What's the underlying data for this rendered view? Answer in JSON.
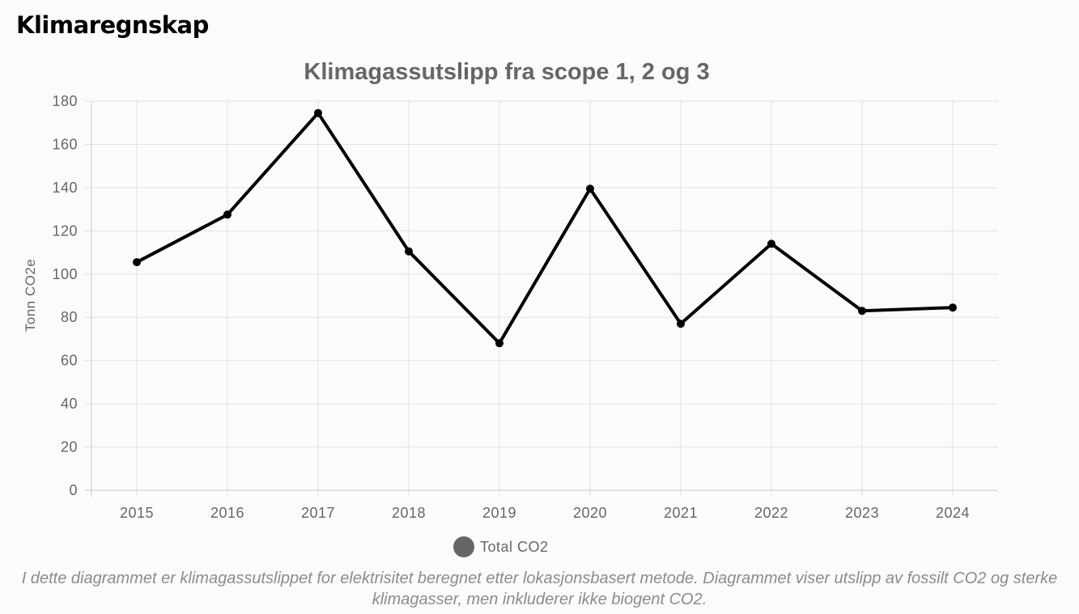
{
  "page": {
    "heading": "Klimaregnskap",
    "footnote": "I dette diagrammet er klimagassutslippet for elektrisitet beregnet etter lokasjonsbasert metode. Diagrammet viser utslipp av fossilt CO2 og sterke klimagasser, men inkluderer ikke biogent CO2."
  },
  "chart_data": {
    "type": "line",
    "title": "Klimagassutslipp fra scope 1, 2 og 3",
    "xlabel": "",
    "ylabel": "Tonn CO2e",
    "categories": [
      "2015",
      "2016",
      "2017",
      "2018",
      "2019",
      "2020",
      "2021",
      "2022",
      "2023",
      "2024"
    ],
    "series": [
      {
        "name": "Total CO2",
        "values": [
          105.5,
          127.5,
          174.5,
          110.5,
          68,
          139.5,
          77,
          114,
          83,
          84.5
        ],
        "color": "#000000"
      }
    ],
    "ylim": [
      0,
      180
    ],
    "yticks": [
      0,
      20,
      40,
      60,
      80,
      100,
      120,
      140,
      160,
      180
    ],
    "grid": true,
    "legend_position": "bottom",
    "legend_marker_color": "#666666"
  }
}
